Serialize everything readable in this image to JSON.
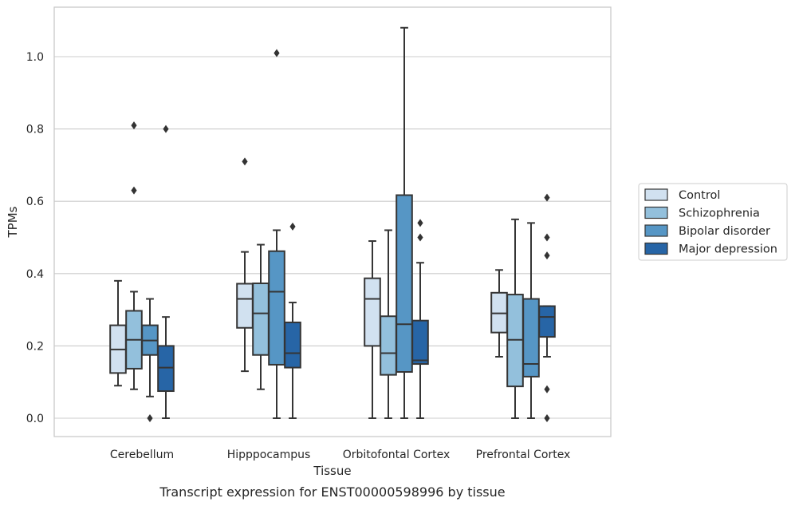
{
  "caption": "Transcript expression for ENST00000598996 by tissue",
  "colors": {
    "Control": "#d1e1f0",
    "Schizophrenia": "#93c0dc",
    "Bipolar disorder": "#5696c5",
    "Major depression": "#2765a6",
    "line": "#353535",
    "grid": "#cccccc",
    "frame": "#c8c8c8"
  },
  "chart_data": {
    "type": "box",
    "xlabel": "Tissue",
    "ylabel": "TPMs",
    "ylim": [
      -0.05,
      1.14
    ],
    "yticks": [
      0.0,
      0.2,
      0.4,
      0.6,
      0.8,
      1.0
    ],
    "ytick_labels": [
      "0.0",
      "0.2",
      "0.4",
      "0.6",
      "0.8",
      "1.0"
    ],
    "grid": "horizontal",
    "legend_position": "right",
    "categories": [
      "Cerebellum",
      "Hipppocampus",
      "Orbitofontal Cortex",
      "Prefrontal Cortex"
    ],
    "series": [
      {
        "name": "Control",
        "boxes": [
          {
            "whislo": 0.09,
            "q1": 0.125,
            "med": 0.19,
            "q3": 0.257,
            "whishi": 0.38,
            "fliers": []
          },
          {
            "whislo": 0.13,
            "q1": 0.25,
            "med": 0.33,
            "q3": 0.372,
            "whishi": 0.46,
            "fliers": [
              0.71
            ]
          },
          {
            "whislo": 0.0,
            "q1": 0.2,
            "med": 0.33,
            "q3": 0.387,
            "whishi": 0.49,
            "fliers": []
          },
          {
            "whislo": 0.17,
            "q1": 0.237,
            "med": 0.29,
            "q3": 0.347,
            "whishi": 0.41,
            "fliers": []
          }
        ]
      },
      {
        "name": "Schizophrenia",
        "boxes": [
          {
            "whislo": 0.08,
            "q1": 0.137,
            "med": 0.217,
            "q3": 0.297,
            "whishi": 0.35,
            "fliers": [
              0.63,
              0.81
            ]
          },
          {
            "whislo": 0.08,
            "q1": 0.175,
            "med": 0.29,
            "q3": 0.373,
            "whishi": 0.48,
            "fliers": []
          },
          {
            "whislo": 0.0,
            "q1": 0.12,
            "med": 0.18,
            "q3": 0.282,
            "whishi": 0.52,
            "fliers": []
          },
          {
            "whislo": 0.0,
            "q1": 0.088,
            "med": 0.217,
            "q3": 0.342,
            "whishi": 0.55,
            "fliers": []
          }
        ]
      },
      {
        "name": "Bipolar disorder",
        "boxes": [
          {
            "whislo": 0.06,
            "q1": 0.175,
            "med": 0.215,
            "q3": 0.257,
            "whishi": 0.33,
            "fliers": [
              0.0
            ]
          },
          {
            "whislo": 0.0,
            "q1": 0.148,
            "med": 0.35,
            "q3": 0.462,
            "whishi": 0.52,
            "fliers": [
              1.01
            ]
          },
          {
            "whislo": 0.0,
            "q1": 0.128,
            "med": 0.26,
            "q3": 0.617,
            "whishi": 1.08,
            "fliers": []
          },
          {
            "whislo": 0.0,
            "q1": 0.115,
            "med": 0.15,
            "q3": 0.33,
            "whishi": 0.54,
            "fliers": []
          }
        ]
      },
      {
        "name": "Major depression",
        "boxes": [
          {
            "whislo": 0.0,
            "q1": 0.075,
            "med": 0.14,
            "q3": 0.2,
            "whishi": 0.28,
            "fliers": [
              0.8
            ]
          },
          {
            "whislo": 0.0,
            "q1": 0.14,
            "med": 0.18,
            "q3": 0.265,
            "whishi": 0.32,
            "fliers": [
              0.53
            ]
          },
          {
            "whislo": 0.0,
            "q1": 0.15,
            "med": 0.16,
            "q3": 0.27,
            "whishi": 0.43,
            "fliers": [
              0.5,
              0.54
            ]
          },
          {
            "whislo": 0.17,
            "q1": 0.225,
            "med": 0.28,
            "q3": 0.31,
            "whishi": 0.31,
            "fliers": [
              0.0,
              0.08,
              0.45,
              0.5,
              0.61
            ]
          }
        ]
      }
    ]
  }
}
